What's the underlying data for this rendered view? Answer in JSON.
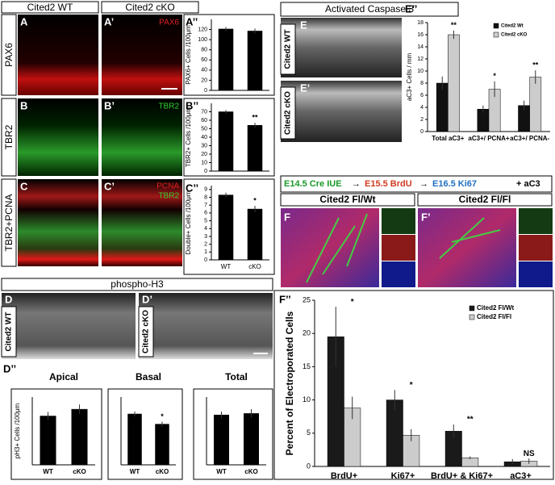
{
  "figure": {
    "columns": [
      "Cited2 WT",
      "Cited2 cKO"
    ],
    "rows": [
      "PAX6",
      "TBR2",
      "TBR2+PCNA"
    ],
    "letters": [
      "A",
      "A’",
      "B",
      "B’",
      "C",
      "C’"
    ],
    "markers": [
      "PAX6",
      "TBR2",
      "PCNA",
      "TBR2"
    ],
    "d": {
      "title": "phospho-H3",
      "letters": [
        "D",
        "D’"
      ],
      "labels": [
        "Cited2 WT",
        "Cited2 cKO"
      ]
    },
    "e": {
      "title": "Activated Caspase 3",
      "letters": [
        "E",
        "E’"
      ],
      "labels": [
        "Cited2 WT",
        "Cited2 cKO"
      ]
    },
    "timeline": [
      "E14.5 Cre IUE",
      "E15.5 BrdU",
      "E16.5 Ki67",
      "+ aC3"
    ],
    "f": {
      "headers": [
        "Cited2 Fl/Wt",
        "Cited2 Fl/Fl"
      ],
      "letters": [
        "F",
        "F’"
      ]
    }
  },
  "chart_data": [
    {
      "type": "bar",
      "label": "A’’",
      "ylabel": "PAX6+ Cells /100μm",
      "categories": [
        null,
        null
      ],
      "values": [
        121,
        117
      ],
      "errors": [
        4,
        5
      ],
      "color": "#000000",
      "ylim": [
        0,
        140
      ],
      "yticks": [
        0,
        20,
        40,
        60,
        80,
        100,
        120
      ],
      "annotations": [
        null,
        null
      ]
    },
    {
      "type": "bar",
      "label": "B’’",
      "ylabel": "TBR2+ Cells /100μm",
      "categories": [
        null,
        null
      ],
      "values": [
        70,
        54
      ],
      "errors": [
        2,
        3
      ],
      "color": "#000000",
      "ylim": [
        0,
        80
      ],
      "yticks": [
        0,
        10,
        20,
        30,
        40,
        50,
        60,
        70
      ],
      "annotations": [
        null,
        "**"
      ]
    },
    {
      "type": "bar",
      "label": "C’’",
      "ylabel": "Double+ Cells /100μm",
      "categories": [
        "WT",
        "cKO"
      ],
      "values": [
        8.3,
        6.5
      ],
      "errors": [
        0.3,
        0.4
      ],
      "color": "#000000",
      "ylim": [
        0,
        9.5
      ],
      "yticks": [
        0,
        1,
        2,
        3,
        4,
        5,
        6,
        7,
        8,
        9
      ],
      "annotations": [
        null,
        "*"
      ]
    },
    {
      "type": "bar",
      "label": "E’’",
      "ylabel": "aC3+ Cells / mm",
      "categories": [
        "Total aC3+",
        "aC3+/ PCNA+",
        "aC3+/ PCNA-"
      ],
      "series": [
        {
          "name": "Cited2 Wt",
          "color": "#111111",
          "values": [
            8,
            3.7,
            4.3
          ],
          "errors": [
            1.1,
            0.6,
            0.8
          ]
        },
        {
          "name": "Cited2 cKO",
          "color": "#cccccc",
          "values": [
            16,
            7,
            9
          ],
          "errors": [
            0.7,
            1.3,
            1.1
          ]
        }
      ],
      "ylim": [
        0,
        18
      ],
      "yticks": [
        0,
        2,
        4,
        6,
        8,
        10,
        12,
        14,
        16,
        18
      ],
      "annotations": [
        "**",
        "*",
        "**"
      ],
      "legend": "top-right"
    },
    {
      "type": "bar",
      "label": "D’’",
      "title": "Apical",
      "ylabel": "pH3+ Cells /100μm",
      "categories": [
        "WT",
        "cKO"
      ],
      "values": [
        72,
        82
      ],
      "errors": [
        6,
        7
      ],
      "color": "#000000",
      "ylim": [
        0,
        100
      ],
      "annotations": [
        null,
        null
      ]
    },
    {
      "type": "bar",
      "title": "Basal",
      "categories": [
        "WT",
        "cKO"
      ],
      "values": [
        30,
        24
      ],
      "errors": [
        1.5,
        1.5
      ],
      "color": "#000000",
      "ylim": [
        0,
        40
      ],
      "annotations": [
        null,
        "*"
      ]
    },
    {
      "type": "bar",
      "title": "Total",
      "categories": [
        "WT",
        "cKO"
      ],
      "values": [
        103,
        106
      ],
      "errors": [
        7,
        9
      ],
      "color": "#000000",
      "ylim": [
        0,
        140
      ],
      "annotations": [
        null,
        null
      ]
    },
    {
      "type": "bar",
      "label": "F’’",
      "ylabel": "Percent of Electroporated Cells",
      "categories": [
        "BrdU+",
        "Ki67+",
        "BrdU+ & Ki67+",
        "aC3+"
      ],
      "series": [
        {
          "name": "Cited2 Fl/Wt",
          "color": "#1a1a1a",
          "values": [
            19.5,
            10,
            5.3,
            0.7
          ],
          "errors": [
            4.5,
            1.5,
            1,
            0.4
          ]
        },
        {
          "name": "Cited2 Fl/Fl",
          "color": "#cccccc",
          "values": [
            8.8,
            4.7,
            1.3,
            0.8
          ],
          "errors": [
            1.7,
            0.9,
            0.2,
            0.4
          ]
        }
      ],
      "ylim": [
        0,
        25
      ],
      "yticks": [
        0,
        5,
        10,
        15,
        20,
        25
      ],
      "annotations": [
        "*",
        "*",
        "**",
        "NS"
      ],
      "legend": "top-right"
    }
  ]
}
